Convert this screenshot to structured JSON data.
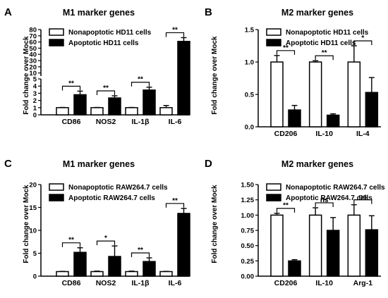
{
  "chart_data": [
    {
      "panel": "A",
      "type": "bar",
      "title": "M1 marker genes",
      "ylabel": "Fold change over Mock",
      "categories": [
        "CD86",
        "NOS2",
        "IL-1β",
        "IL-6"
      ],
      "y_axis": {
        "broken": true,
        "lower_ticks": [
          0,
          1,
          2,
          3,
          4,
          5
        ],
        "upper_ticks": [
          10,
          20,
          30,
          40,
          50,
          60,
          70,
          80
        ],
        "lower_range": [
          0,
          5
        ],
        "upper_range": [
          5,
          80
        ]
      },
      "series": [
        {
          "name": "Nonapoptotic HD11 cells",
          "fill": "white",
          "values": [
            1.0,
            1.0,
            1.0,
            1.0
          ],
          "errors": [
            0.03,
            0.03,
            0.03,
            0.3
          ]
        },
        {
          "name": "Apoptotic HD11 cells",
          "fill": "black",
          "values": [
            2.8,
            2.35,
            3.45,
            61
          ],
          "errors": [
            0.5,
            0.3,
            0.4,
            6
          ]
        }
      ],
      "significance": [
        "**",
        "**",
        "**",
        "**"
      ],
      "legend": "top-left"
    },
    {
      "panel": "B",
      "type": "bar",
      "title": "M2 marker genes",
      "ylabel": "Fold change over Mock",
      "categories": [
        "CD206",
        "IL-10",
        "IL-4"
      ],
      "ylim": [
        0,
        1.5
      ],
      "yticks": [
        "0.0",
        "0.5",
        "1.0",
        "1.5"
      ],
      "series": [
        {
          "name": "Nonapoptotic HD11 cells",
          "fill": "white",
          "values": [
            1.0,
            1.0,
            1.0
          ],
          "errors": [
            0.1,
            0.02,
            0.25
          ]
        },
        {
          "name": "Apoptotic HD11 cells",
          "fill": "black",
          "values": [
            0.26,
            0.18,
            0.53
          ],
          "errors": [
            0.07,
            0.02,
            0.23
          ]
        }
      ],
      "significance": [
        "**",
        "**",
        "*"
      ],
      "legend": "top-left"
    },
    {
      "panel": "C",
      "type": "bar",
      "title": "M1 marker genes",
      "ylabel": "Fold change over Mock",
      "categories": [
        "CD86",
        "NOS2",
        "IL-1β",
        "IL-6"
      ],
      "ylim": [
        0,
        20
      ],
      "yticks": [
        "0",
        "5",
        "10",
        "15",
        "20"
      ],
      "series": [
        {
          "name": "Nonapoptotic RAW264.7 cells",
          "fill": "white",
          "values": [
            1.0,
            1.0,
            1.0,
            1.0
          ],
          "errors": [
            0.05,
            0.1,
            0.1,
            0.05
          ]
        },
        {
          "name": "Apoptotic RAW264.7 cells",
          "fill": "black",
          "values": [
            5.2,
            4.3,
            3.2,
            13.7
          ],
          "errors": [
            1.0,
            2.3,
            0.8,
            1.1
          ]
        }
      ],
      "significance": [
        "**",
        "*",
        "**",
        "**"
      ],
      "legend": "top-left"
    },
    {
      "panel": "D",
      "type": "bar",
      "title": "M2 marker genes",
      "ylabel": "Fold change over Mock",
      "categories": [
        "CD206",
        "IL-10",
        "Arg-1"
      ],
      "ylim": [
        0,
        1.5
      ],
      "yticks": [
        "0.00",
        "0.25",
        "0.50",
        "0.75",
        "1.00",
        "1.25",
        "1.50"
      ],
      "series": [
        {
          "name": "Nonapoptotic RAW264.7 cells",
          "fill": "white",
          "values": [
            1.0,
            1.0,
            1.0
          ],
          "errors": [
            0.03,
            0.12,
            0.17
          ]
        },
        {
          "name": "Apoptotic RAW264.7 cells",
          "fill": "black",
          "values": [
            0.25,
            0.75,
            0.76
          ],
          "errors": [
            0.02,
            0.21,
            0.23
          ]
        }
      ],
      "significance": [
        "**",
        "ns",
        "ns"
      ],
      "legend": "top-left"
    }
  ]
}
